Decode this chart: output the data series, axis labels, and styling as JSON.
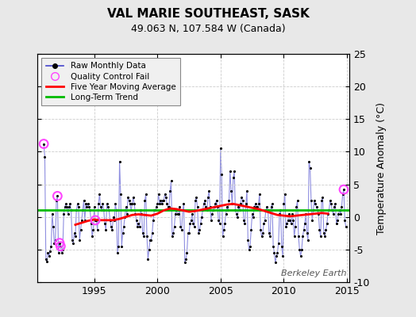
{
  "title": "VAL MARIE SOUTHEAST, SASK",
  "subtitle": "49.063 N, 107.584 W (Canada)",
  "ylabel": "Temperature Anomaly (°C)",
  "watermark": "Berkeley Earth",
  "xlim": [
    1990.5,
    2015.2
  ],
  "ylim": [
    -10,
    25
  ],
  "yticks": [
    -10,
    -5,
    0,
    5,
    10,
    15,
    20,
    25
  ],
  "xticks": [
    1995,
    2000,
    2005,
    2010,
    2015
  ],
  "background_color": "#e8e8e8",
  "plot_bg_color": "#ffffff",
  "grid_color": "#cccccc",
  "raw_line_color": "#4444cc",
  "raw_line_alpha": 0.6,
  "raw_dot_color": "#000000",
  "moving_avg_color": "#ff0000",
  "trend_color": "#00bb00",
  "qc_fail_color": "#ff44ff",
  "raw_data": [
    [
      1991.0,
      11.2
    ],
    [
      1991.083,
      9.2
    ],
    [
      1991.167,
      -6.5
    ],
    [
      1991.25,
      -6.8
    ],
    [
      1991.333,
      -5.5
    ],
    [
      1991.417,
      -6.0
    ],
    [
      1991.5,
      -5.2
    ],
    [
      1991.583,
      -4.5
    ],
    [
      1991.667,
      0.5
    ],
    [
      1991.75,
      -1.5
    ],
    [
      1991.833,
      -4.0
    ],
    [
      1991.917,
      -3.5
    ],
    [
      1992.0,
      2.5
    ],
    [
      1992.083,
      3.2
    ],
    [
      1992.167,
      -5.5
    ],
    [
      1992.25,
      -4.0
    ],
    [
      1992.333,
      -4.5
    ],
    [
      1992.417,
      -5.5
    ],
    [
      1992.5,
      -5.0
    ],
    [
      1992.583,
      0.5
    ],
    [
      1992.667,
      1.5
    ],
    [
      1992.75,
      2.0
    ],
    [
      1992.833,
      1.5
    ],
    [
      1992.917,
      0.5
    ],
    [
      1993.0,
      1.5
    ],
    [
      1993.083,
      2.0
    ],
    [
      1993.167,
      1.0
    ],
    [
      1993.25,
      -3.5
    ],
    [
      1993.333,
      -4.0
    ],
    [
      1993.417,
      -2.5
    ],
    [
      1993.5,
      -3.0
    ],
    [
      1993.583,
      1.0
    ],
    [
      1993.667,
      2.0
    ],
    [
      1993.75,
      1.5
    ],
    [
      1993.833,
      -3.5
    ],
    [
      1993.917,
      -2.0
    ],
    [
      1994.0,
      -0.5
    ],
    [
      1994.083,
      1.0
    ],
    [
      1994.167,
      2.5
    ],
    [
      1994.25,
      -0.5
    ],
    [
      1994.333,
      2.0
    ],
    [
      1994.417,
      1.5
    ],
    [
      1994.5,
      2.0
    ],
    [
      1994.583,
      1.5
    ],
    [
      1994.667,
      1.0
    ],
    [
      1994.75,
      -1.0
    ],
    [
      1994.833,
      -3.0
    ],
    [
      1994.917,
      -2.0
    ],
    [
      1995.0,
      1.5
    ],
    [
      1995.083,
      -0.5
    ],
    [
      1995.167,
      -0.5
    ],
    [
      1995.25,
      -2.0
    ],
    [
      1995.333,
      2.0
    ],
    [
      1995.417,
      3.5
    ],
    [
      1995.5,
      1.5
    ],
    [
      1995.583,
      1.0
    ],
    [
      1995.667,
      2.0
    ],
    [
      1995.75,
      1.0
    ],
    [
      1995.833,
      -1.0
    ],
    [
      1995.917,
      -2.0
    ],
    [
      1996.0,
      2.0
    ],
    [
      1996.083,
      1.5
    ],
    [
      1996.167,
      1.0
    ],
    [
      1996.25,
      -0.5
    ],
    [
      1996.333,
      -1.5
    ],
    [
      1996.417,
      -2.0
    ],
    [
      1996.5,
      0.0
    ],
    [
      1996.583,
      -0.5
    ],
    [
      1996.667,
      2.0
    ],
    [
      1996.75,
      1.0
    ],
    [
      1996.833,
      -5.5
    ],
    [
      1996.917,
      -4.5
    ],
    [
      1997.0,
      8.5
    ],
    [
      1997.083,
      3.5
    ],
    [
      1997.167,
      -4.5
    ],
    [
      1997.25,
      -2.5
    ],
    [
      1997.333,
      -1.5
    ],
    [
      1997.417,
      0.0
    ],
    [
      1997.5,
      1.5
    ],
    [
      1997.583,
      0.5
    ],
    [
      1997.667,
      3.0
    ],
    [
      1997.75,
      2.5
    ],
    [
      1997.833,
      2.0
    ],
    [
      1997.917,
      1.0
    ],
    [
      1998.0,
      2.0
    ],
    [
      1998.083,
      3.0
    ],
    [
      1998.167,
      2.0
    ],
    [
      1998.25,
      0.5
    ],
    [
      1998.333,
      -0.5
    ],
    [
      1998.417,
      -1.5
    ],
    [
      1998.5,
      -1.0
    ],
    [
      1998.583,
      -1.5
    ],
    [
      1998.667,
      1.0
    ],
    [
      1998.75,
      0.5
    ],
    [
      1998.833,
      -2.5
    ],
    [
      1998.917,
      -3.0
    ],
    [
      1999.0,
      2.5
    ],
    [
      1999.083,
      3.5
    ],
    [
      1999.167,
      -3.0
    ],
    [
      1999.25,
      -6.5
    ],
    [
      1999.333,
      -5.0
    ],
    [
      1999.417,
      -3.5
    ],
    [
      1999.5,
      -3.5
    ],
    [
      1999.583,
      -2.5
    ],
    [
      1999.667,
      -0.5
    ],
    [
      1999.75,
      1.0
    ],
    [
      1999.833,
      1.0
    ],
    [
      1999.917,
      1.5
    ],
    [
      2000.0,
      2.0
    ],
    [
      2000.083,
      3.5
    ],
    [
      2000.167,
      2.0
    ],
    [
      2000.25,
      2.5
    ],
    [
      2000.333,
      2.0
    ],
    [
      2000.417,
      2.5
    ],
    [
      2000.5,
      2.5
    ],
    [
      2000.583,
      3.5
    ],
    [
      2000.667,
      3.0
    ],
    [
      2000.75,
      2.0
    ],
    [
      2000.833,
      1.5
    ],
    [
      2000.917,
      1.5
    ],
    [
      2001.0,
      4.0
    ],
    [
      2001.083,
      5.5
    ],
    [
      2001.167,
      -3.0
    ],
    [
      2001.25,
      -2.5
    ],
    [
      2001.333,
      -1.5
    ],
    [
      2001.417,
      0.5
    ],
    [
      2001.5,
      1.0
    ],
    [
      2001.583,
      0.5
    ],
    [
      2001.667,
      0.5
    ],
    [
      2001.75,
      1.5
    ],
    [
      2001.833,
      -1.5
    ],
    [
      2001.917,
      -2.0
    ],
    [
      2002.0,
      1.0
    ],
    [
      2002.083,
      2.0
    ],
    [
      2002.167,
      -7.0
    ],
    [
      2002.25,
      -6.5
    ],
    [
      2002.333,
      -5.5
    ],
    [
      2002.417,
      -2.5
    ],
    [
      2002.5,
      -2.5
    ],
    [
      2002.583,
      -1.0
    ],
    [
      2002.667,
      -0.5
    ],
    [
      2002.75,
      0.5
    ],
    [
      2002.833,
      -1.0
    ],
    [
      2002.917,
      -1.5
    ],
    [
      2003.0,
      2.5
    ],
    [
      2003.083,
      3.0
    ],
    [
      2003.167,
      1.5
    ],
    [
      2003.25,
      -2.5
    ],
    [
      2003.333,
      -2.0
    ],
    [
      2003.417,
      -1.0
    ],
    [
      2003.5,
      0.0
    ],
    [
      2003.583,
      1.0
    ],
    [
      2003.667,
      2.0
    ],
    [
      2003.75,
      2.5
    ],
    [
      2003.833,
      1.5
    ],
    [
      2003.917,
      1.0
    ],
    [
      2004.0,
      3.0
    ],
    [
      2004.083,
      4.0
    ],
    [
      2004.167,
      1.5
    ],
    [
      2004.25,
      -0.5
    ],
    [
      2004.333,
      0.5
    ],
    [
      2004.417,
      1.0
    ],
    [
      2004.5,
      1.5
    ],
    [
      2004.583,
      2.0
    ],
    [
      2004.667,
      2.5
    ],
    [
      2004.75,
      1.5
    ],
    [
      2004.833,
      -0.5
    ],
    [
      2004.917,
      -1.0
    ],
    [
      2005.0,
      10.5
    ],
    [
      2005.083,
      6.5
    ],
    [
      2005.167,
      -3.0
    ],
    [
      2005.25,
      -2.0
    ],
    [
      2005.333,
      -1.0
    ],
    [
      2005.417,
      0.5
    ],
    [
      2005.5,
      1.5
    ],
    [
      2005.583,
      1.0
    ],
    [
      2005.667,
      2.5
    ],
    [
      2005.75,
      7.0
    ],
    [
      2005.833,
      4.0
    ],
    [
      2005.917,
      2.0
    ],
    [
      2006.0,
      6.0
    ],
    [
      2006.083,
      7.0
    ],
    [
      2006.167,
      1.0
    ],
    [
      2006.25,
      0.5
    ],
    [
      2006.333,
      0.0
    ],
    [
      2006.417,
      1.5
    ],
    [
      2006.5,
      1.0
    ],
    [
      2006.583,
      2.0
    ],
    [
      2006.667,
      3.0
    ],
    [
      2006.75,
      2.5
    ],
    [
      2006.833,
      -0.5
    ],
    [
      2006.917,
      -1.0
    ],
    [
      2007.0,
      2.0
    ],
    [
      2007.083,
      4.0
    ],
    [
      2007.167,
      -3.5
    ],
    [
      2007.25,
      -5.0
    ],
    [
      2007.333,
      -4.5
    ],
    [
      2007.417,
      -2.0
    ],
    [
      2007.5,
      0.5
    ],
    [
      2007.583,
      0.0
    ],
    [
      2007.667,
      1.5
    ],
    [
      2007.75,
      2.0
    ],
    [
      2007.833,
      1.5
    ],
    [
      2007.917,
      1.5
    ],
    [
      2008.0,
      2.0
    ],
    [
      2008.083,
      3.5
    ],
    [
      2008.167,
      -2.0
    ],
    [
      2008.25,
      -3.0
    ],
    [
      2008.333,
      -2.5
    ],
    [
      2008.417,
      -1.0
    ],
    [
      2008.5,
      -0.5
    ],
    [
      2008.583,
      1.0
    ],
    [
      2008.667,
      1.5
    ],
    [
      2008.75,
      1.0
    ],
    [
      2008.833,
      -2.5
    ],
    [
      2008.917,
      -3.0
    ],
    [
      2009.0,
      1.5
    ],
    [
      2009.083,
      2.0
    ],
    [
      2009.167,
      -4.5
    ],
    [
      2009.25,
      -5.5
    ],
    [
      2009.333,
      -7.0
    ],
    [
      2009.417,
      -6.0
    ],
    [
      2009.5,
      -5.5
    ],
    [
      2009.583,
      -4.0
    ],
    [
      2009.667,
      0.5
    ],
    [
      2009.75,
      1.0
    ],
    [
      2009.833,
      -4.5
    ],
    [
      2009.917,
      -6.0
    ],
    [
      2010.0,
      2.0
    ],
    [
      2010.083,
      3.5
    ],
    [
      2010.167,
      -1.5
    ],
    [
      2010.25,
      -1.0
    ],
    [
      2010.333,
      -0.5
    ],
    [
      2010.417,
      0.5
    ],
    [
      2010.5,
      -0.5
    ],
    [
      2010.583,
      -1.0
    ],
    [
      2010.667,
      0.5
    ],
    [
      2010.75,
      -0.5
    ],
    [
      2010.833,
      -3.0
    ],
    [
      2010.917,
      -1.5
    ],
    [
      2011.0,
      1.5
    ],
    [
      2011.083,
      2.5
    ],
    [
      2011.167,
      -3.0
    ],
    [
      2011.25,
      -5.0
    ],
    [
      2011.333,
      -6.0
    ],
    [
      2011.417,
      -5.0
    ],
    [
      2011.5,
      -3.0
    ],
    [
      2011.583,
      -2.0
    ],
    [
      2011.667,
      -1.0
    ],
    [
      2011.75,
      0.5
    ],
    [
      2011.833,
      -2.5
    ],
    [
      2011.917,
      -3.5
    ],
    [
      2012.0,
      8.5
    ],
    [
      2012.083,
      7.5
    ],
    [
      2012.167,
      2.5
    ],
    [
      2012.25,
      -0.5
    ],
    [
      2012.333,
      1.0
    ],
    [
      2012.417,
      2.5
    ],
    [
      2012.5,
      2.0
    ],
    [
      2012.583,
      1.5
    ],
    [
      2012.667,
      1.0
    ],
    [
      2012.75,
      0.5
    ],
    [
      2012.833,
      -2.0
    ],
    [
      2012.917,
      -3.0
    ],
    [
      2013.0,
      2.5
    ],
    [
      2013.083,
      3.0
    ],
    [
      2013.167,
      -2.5
    ],
    [
      2013.25,
      -3.0
    ],
    [
      2013.333,
      -2.0
    ],
    [
      2013.417,
      -1.0
    ],
    [
      2013.5,
      0.5
    ],
    [
      2013.583,
      1.0
    ],
    [
      2013.667,
      2.5
    ],
    [
      2013.75,
      2.0
    ],
    [
      2013.833,
      1.0
    ],
    [
      2013.917,
      0.5
    ],
    [
      2014.0,
      1.5
    ],
    [
      2014.083,
      2.0
    ],
    [
      2014.167,
      -1.0
    ],
    [
      2014.25,
      -0.5
    ],
    [
      2014.333,
      0.5
    ],
    [
      2014.417,
      1.0
    ],
    [
      2014.5,
      0.5
    ],
    [
      2014.583,
      1.5
    ],
    [
      2014.667,
      3.5
    ],
    [
      2014.75,
      4.2
    ],
    [
      2014.833,
      -0.5
    ],
    [
      2014.917,
      -1.5
    ]
  ],
  "qc_fail_points": [
    [
      1991.0,
      11.2
    ],
    [
      1992.083,
      3.2
    ],
    [
      1992.25,
      -4.0
    ],
    [
      1992.333,
      -4.5
    ],
    [
      1995.083,
      -0.5
    ],
    [
      2014.75,
      4.2
    ]
  ],
  "moving_avg": [
    [
      1993.5,
      -1.2
    ],
    [
      1994.0,
      -0.9
    ],
    [
      1994.5,
      -0.6
    ],
    [
      1995.0,
      -0.4
    ],
    [
      1995.5,
      -0.5
    ],
    [
      1996.0,
      -0.5
    ],
    [
      1996.5,
      -0.5
    ],
    [
      1997.0,
      -0.3
    ],
    [
      1997.5,
      0.0
    ],
    [
      1998.0,
      0.3
    ],
    [
      1998.5,
      0.4
    ],
    [
      1999.0,
      0.3
    ],
    [
      1999.5,
      0.2
    ],
    [
      2000.0,
      0.5
    ],
    [
      2000.5,
      1.0
    ],
    [
      2001.0,
      1.3
    ],
    [
      2001.5,
      1.2
    ],
    [
      2002.0,
      1.0
    ],
    [
      2002.5,
      0.8
    ],
    [
      2003.0,
      0.9
    ],
    [
      2003.5,
      1.1
    ],
    [
      2004.0,
      1.3
    ],
    [
      2004.5,
      1.5
    ],
    [
      2005.0,
      1.7
    ],
    [
      2005.5,
      1.9
    ],
    [
      2006.0,
      2.0
    ],
    [
      2006.5,
      1.8
    ],
    [
      2007.0,
      1.6
    ],
    [
      2007.5,
      1.4
    ],
    [
      2008.0,
      1.2
    ],
    [
      2008.5,
      0.9
    ],
    [
      2009.0,
      0.6
    ],
    [
      2009.5,
      0.3
    ],
    [
      2010.0,
      0.2
    ],
    [
      2010.5,
      0.1
    ],
    [
      2011.0,
      0.2
    ],
    [
      2011.5,
      0.3
    ],
    [
      2012.0,
      0.4
    ],
    [
      2012.5,
      0.5
    ],
    [
      2013.0,
      0.6
    ],
    [
      2013.5,
      0.5
    ]
  ],
  "trend_start_x": 1990.5,
  "trend_end_x": 2015.2,
  "trend_y": 1.0
}
